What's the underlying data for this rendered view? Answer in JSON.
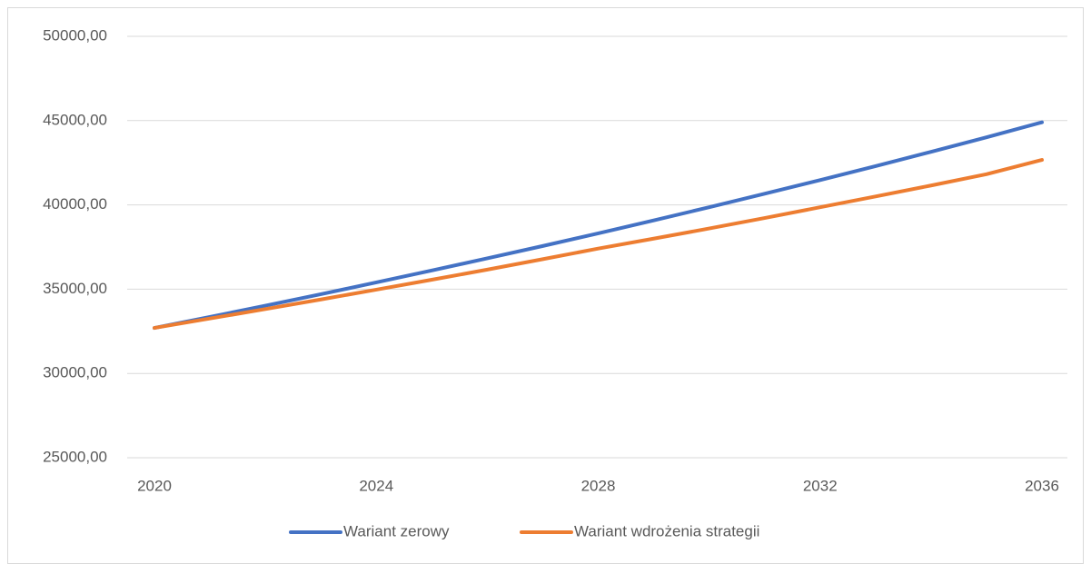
{
  "chart_data": {
    "type": "line",
    "x": [
      2020,
      2021,
      2022,
      2023,
      2024,
      2025,
      2026,
      2027,
      2028,
      2029,
      2030,
      2031,
      2032,
      2033,
      2034,
      2035,
      2036
    ],
    "series": [
      {
        "name": "Wariant zerowy",
        "color": "#4472c4",
        "values": [
          32700,
          33350,
          34020,
          34700,
          35400,
          36110,
          36830,
          37560,
          38310,
          39080,
          39860,
          40660,
          41470,
          42300,
          43150,
          44010,
          44900
        ]
      },
      {
        "name": "Wariant wdrożenia strategii",
        "color": "#ed7d31",
        "values": [
          32700,
          33260,
          33820,
          34390,
          34970,
          35560,
          36160,
          36780,
          37410,
          38000,
          38600,
          39220,
          39860,
          40500,
          41150,
          41820,
          42670
        ]
      }
    ],
    "xlim": [
      2020,
      2036
    ],
    "xticks": [
      2020,
      2024,
      2028,
      2032,
      2036
    ],
    "ylim": [
      25000,
      50000
    ],
    "yticks": [
      {
        "value": 25000,
        "label": "25000,00"
      },
      {
        "value": 30000,
        "label": "30000,00"
      },
      {
        "value": 35000,
        "label": "35000,00"
      },
      {
        "value": 40000,
        "label": "40000,00"
      },
      {
        "value": 45000,
        "label": "45000,00"
      },
      {
        "value": 50000,
        "label": "50000,00"
      }
    ],
    "grid": true,
    "legend": "bottom"
  }
}
